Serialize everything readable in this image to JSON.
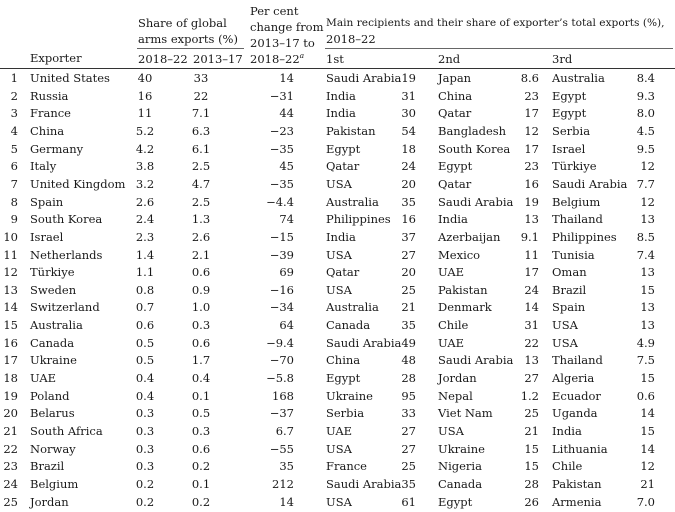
{
  "header": {
    "exporter": "Exporter",
    "share_title_1": "Share of global",
    "share_title_2": "arms exports (%)",
    "share_col1": "2018–22",
    "share_col2": "2013–17",
    "change_title_1": "Per cent",
    "change_title_2": "change from",
    "change_title_3": "2013–17 to",
    "change_title_4": "2018–22",
    "change_note": "a",
    "recip_title_1": "Main recipients and their share of exporter’s total exports (%),",
    "recip_title_2": "2018–22",
    "rank1": "1st",
    "rank2": "2nd",
    "rank3": "3rd"
  },
  "rows": [
    {
      "rank": "1",
      "exporter": "United States",
      "share_2018_22": "40",
      "share_2013_17": "33",
      "change": "14",
      "r1": "Saudi Arabia",
      "r1v": "19",
      "r2": "Japan",
      "r2v": "8.6",
      "r3": "Australia",
      "r3v": "8.4"
    },
    {
      "rank": "2",
      "exporter": "Russia",
      "share_2018_22": "16",
      "share_2013_17": "22",
      "change": "−31",
      "r1": "India",
      "r1v": "31",
      "r2": "China",
      "r2v": "23",
      "r3": "Egypt",
      "r3v": "9.3"
    },
    {
      "rank": "3",
      "exporter": "France",
      "share_2018_22": "11",
      "share_2013_17": "7.1",
      "change": "44",
      "r1": "India",
      "r1v": "30",
      "r2": "Qatar",
      "r2v": "17",
      "r3": "Egypt",
      "r3v": "8.0"
    },
    {
      "rank": "4",
      "exporter": "China",
      "share_2018_22": "5.2",
      "share_2013_17": "6.3",
      "change": "−23",
      "r1": "Pakistan",
      "r1v": "54",
      "r2": "Bangladesh",
      "r2v": "12",
      "r3": "Serbia",
      "r3v": "4.5"
    },
    {
      "rank": "5",
      "exporter": "Germany",
      "share_2018_22": "4.2",
      "share_2013_17": "6.1",
      "change": "−35",
      "r1": "Egypt",
      "r1v": "18",
      "r2": "South Korea",
      "r2v": "17",
      "r3": "Israel",
      "r3v": "9.5"
    },
    {
      "rank": "6",
      "exporter": "Italy",
      "share_2018_22": "3.8",
      "share_2013_17": "2.5",
      "change": "45",
      "r1": "Qatar",
      "r1v": "24",
      "r2": "Egypt",
      "r2v": "23",
      "r3": "Türkiye",
      "r3v": "12"
    },
    {
      "rank": "7",
      "exporter": "United Kingdom",
      "share_2018_22": "3.2",
      "share_2013_17": "4.7",
      "change": "−35",
      "r1": "USA",
      "r1v": "20",
      "r2": "Qatar",
      "r2v": "16",
      "r3": "Saudi Arabia",
      "r3v": "7.7"
    },
    {
      "rank": "8",
      "exporter": "Spain",
      "share_2018_22": "2.6",
      "share_2013_17": "2.5",
      "change": "−4.4",
      "r1": "Australia",
      "r1v": "35",
      "r2": "Saudi Arabia",
      "r2v": "19",
      "r3": "Belgium",
      "r3v": "12"
    },
    {
      "rank": "9",
      "exporter": "South Korea",
      "share_2018_22": "2.4",
      "share_2013_17": "1.3",
      "change": "74",
      "r1": "Philippines",
      "r1v": "16",
      "r2": "India",
      "r2v": "13",
      "r3": "Thailand",
      "r3v": "13"
    },
    {
      "rank": "10",
      "exporter": "Israel",
      "share_2018_22": "2.3",
      "share_2013_17": "2.6",
      "change": "−15",
      "r1": "India",
      "r1v": "37",
      "r2": "Azerbaijan",
      "r2v": "9.1",
      "r3": "Philippines",
      "r3v": "8.5"
    },
    {
      "rank": "11",
      "exporter": "Netherlands",
      "share_2018_22": "1.4",
      "share_2013_17": "2.1",
      "change": "−39",
      "r1": "USA",
      "r1v": "27",
      "r2": "Mexico",
      "r2v": "11",
      "r3": "Tunisia",
      "r3v": "7.4"
    },
    {
      "rank": "12",
      "exporter": "Türkiye",
      "share_2018_22": "1.1",
      "share_2013_17": "0.6",
      "change": "69",
      "r1": "Qatar",
      "r1v": "20",
      "r2": "UAE",
      "r2v": "17",
      "r3": "Oman",
      "r3v": "13"
    },
    {
      "rank": "13",
      "exporter": "Sweden",
      "share_2018_22": "0.8",
      "share_2013_17": "0.9",
      "change": "−16",
      "r1": "USA",
      "r1v": "25",
      "r2": "Pakistan",
      "r2v": "24",
      "r3": "Brazil",
      "r3v": "15"
    },
    {
      "rank": "14",
      "exporter": "Switzerland",
      "share_2018_22": "0.7",
      "share_2013_17": "1.0",
      "change": "−34",
      "r1": "Australia",
      "r1v": "21",
      "r2": "Denmark",
      "r2v": "14",
      "r3": "Spain",
      "r3v": "13"
    },
    {
      "rank": "15",
      "exporter": "Australia",
      "share_2018_22": "0.6",
      "share_2013_17": "0.3",
      "change": "64",
      "r1": "Canada",
      "r1v": "35",
      "r2": "Chile",
      "r2v": "31",
      "r3": "USA",
      "r3v": "13"
    },
    {
      "rank": "16",
      "exporter": "Canada",
      "share_2018_22": "0.5",
      "share_2013_17": "0.6",
      "change": "−9.4",
      "r1": "Saudi Arabia",
      "r1v": "49",
      "r2": "UAE",
      "r2v": "22",
      "r3": "USA",
      "r3v": "4.9"
    },
    {
      "rank": "17",
      "exporter": "Ukraine",
      "share_2018_22": "0.5",
      "share_2013_17": "1.7",
      "change": "−70",
      "r1": "China",
      "r1v": "48",
      "r2": "Saudi Arabia",
      "r2v": "13",
      "r3": "Thailand",
      "r3v": "7.5"
    },
    {
      "rank": "18",
      "exporter": "UAE",
      "share_2018_22": "0.4",
      "share_2013_17": "0.4",
      "change": "−5.8",
      "r1": "Egypt",
      "r1v": "28",
      "r2": "Jordan",
      "r2v": "27",
      "r3": "Algeria",
      "r3v": "15"
    },
    {
      "rank": "19",
      "exporter": "Poland",
      "share_2018_22": "0.4",
      "share_2013_17": "0.1",
      "change": "168",
      "r1": "Ukraine",
      "r1v": "95",
      "r2": "Nepal",
      "r2v": "1.2",
      "r3": "Ecuador",
      "r3v": "0.6"
    },
    {
      "rank": "20",
      "exporter": "Belarus",
      "share_2018_22": "0.3",
      "share_2013_17": "0.5",
      "change": "−37",
      "r1": "Serbia",
      "r1v": "33",
      "r2": "Viet Nam",
      "r2v": "25",
      "r3": "Uganda",
      "r3v": "14"
    },
    {
      "rank": "21",
      "exporter": "South Africa",
      "share_2018_22": "0.3",
      "share_2013_17": "0.3",
      "change": "6.7",
      "r1": "UAE",
      "r1v": "27",
      "r2": "USA",
      "r2v": "21",
      "r3": "India",
      "r3v": "15"
    },
    {
      "rank": "22",
      "exporter": "Norway",
      "share_2018_22": "0.3",
      "share_2013_17": "0.6",
      "change": "−55",
      "r1": "USA",
      "r1v": "27",
      "r2": "Ukraine",
      "r2v": "15",
      "r3": "Lithuania",
      "r3v": "14"
    },
    {
      "rank": "23",
      "exporter": "Brazil",
      "share_2018_22": "0.3",
      "share_2013_17": "0.2",
      "change": "35",
      "r1": "France",
      "r1v": "25",
      "r2": "Nigeria",
      "r2v": "15",
      "r3": "Chile",
      "r3v": "12"
    },
    {
      "rank": "24",
      "exporter": "Belgium",
      "share_2018_22": "0.2",
      "share_2013_17": "0.1",
      "change": "212",
      "r1": "Saudi Arabia",
      "r1v": "35",
      "r2": "Canada",
      "r2v": "28",
      "r3": "Pakistan",
      "r3v": "21"
    },
    {
      "rank": "25",
      "exporter": "Jordan",
      "share_2018_22": "0.2",
      "share_2013_17": "0.2",
      "change": "14",
      "r1": "USA",
      "r1v": "61",
      "r2": "Egypt",
      "r2v": "26",
      "r3": "Armenia",
      "r3v": "7.0"
    }
  ]
}
